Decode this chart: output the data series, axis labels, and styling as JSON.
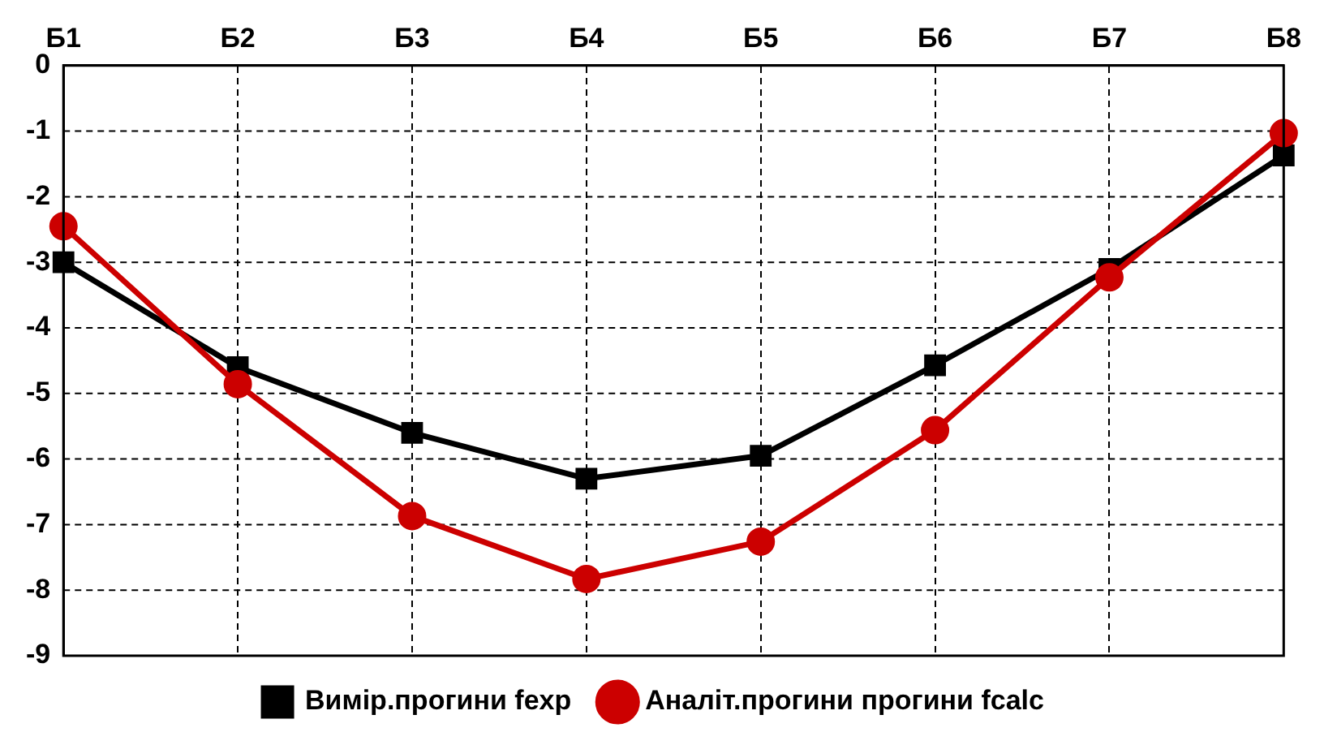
{
  "chart_data": {
    "type": "line",
    "categories": [
      "Б1",
      "Б2",
      "Б3",
      "Б4",
      "Б5",
      "Б6",
      "Б7",
      "Б8"
    ],
    "series": [
      {
        "name": "Вимір.прогини fexp",
        "color": "#000000",
        "marker": "square",
        "values": [
          -3.0,
          -4.6,
          -5.6,
          -6.3,
          -5.95,
          -4.57,
          -3.1,
          -1.37
        ]
      },
      {
        "name": "Аналіт.прогини прогини fcalc",
        "color": "#cc0000",
        "marker": "circle",
        "values": [
          -2.45,
          -4.86,
          -6.87,
          -7.83,
          -7.26,
          -5.56,
          -3.23,
          -1.03
        ]
      }
    ],
    "ylim": [
      -9,
      0
    ],
    "yticks": [
      0,
      -1,
      -2,
      -3,
      -4,
      -5,
      -6,
      -7,
      -8,
      -9
    ],
    "grid": true,
    "legend": "bottom",
    "line_style": "solid"
  }
}
